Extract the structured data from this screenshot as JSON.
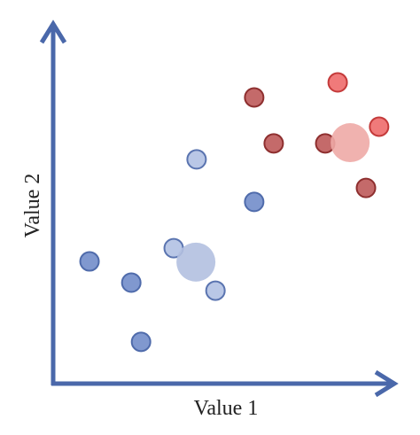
{
  "chart_data": {
    "type": "scatter",
    "x_label": "Value 1",
    "y_label": "Value 2",
    "xlim": [
      0,
      100
    ],
    "ylim": [
      0,
      100
    ],
    "axis_color": "#4a68aa",
    "series": [
      {
        "color": "#8098cf",
        "stroke": "#4f6bab",
        "marker": "point",
        "x": [
          10.8,
          23.2,
          26.1,
          59.7
        ],
        "values": [
          35.1,
          29.0,
          12.0,
          52.2
        ]
      },
      {
        "color": "#b9c7e6",
        "stroke": "#5a74b0",
        "marker": "point",
        "x": [
          35.8,
          48.2,
          42.6
        ],
        "values": [
          38.9,
          26.7,
          64.4
        ]
      },
      {
        "color": "#c46a6a",
        "stroke": "#8e2f2f",
        "marker": "point",
        "x": [
          59.7,
          65.5,
          80.8,
          92.9
        ],
        "values": [
          82.2,
          69.0,
          69.0,
          56.2
        ]
      },
      {
        "color": "#f07a7a",
        "stroke": "#c43a3a",
        "marker": "point",
        "x": [
          84.5,
          96.8
        ],
        "values": [
          86.5,
          73.8
        ]
      },
      {
        "color": "#b3c0e0",
        "marker": "centroid",
        "x": [
          42.4
        ],
        "values": [
          34.9
        ]
      },
      {
        "color": "#eeaaa6",
        "marker": "centroid",
        "x": [
          88.2
        ],
        "values": [
          69.2
        ]
      }
    ]
  }
}
